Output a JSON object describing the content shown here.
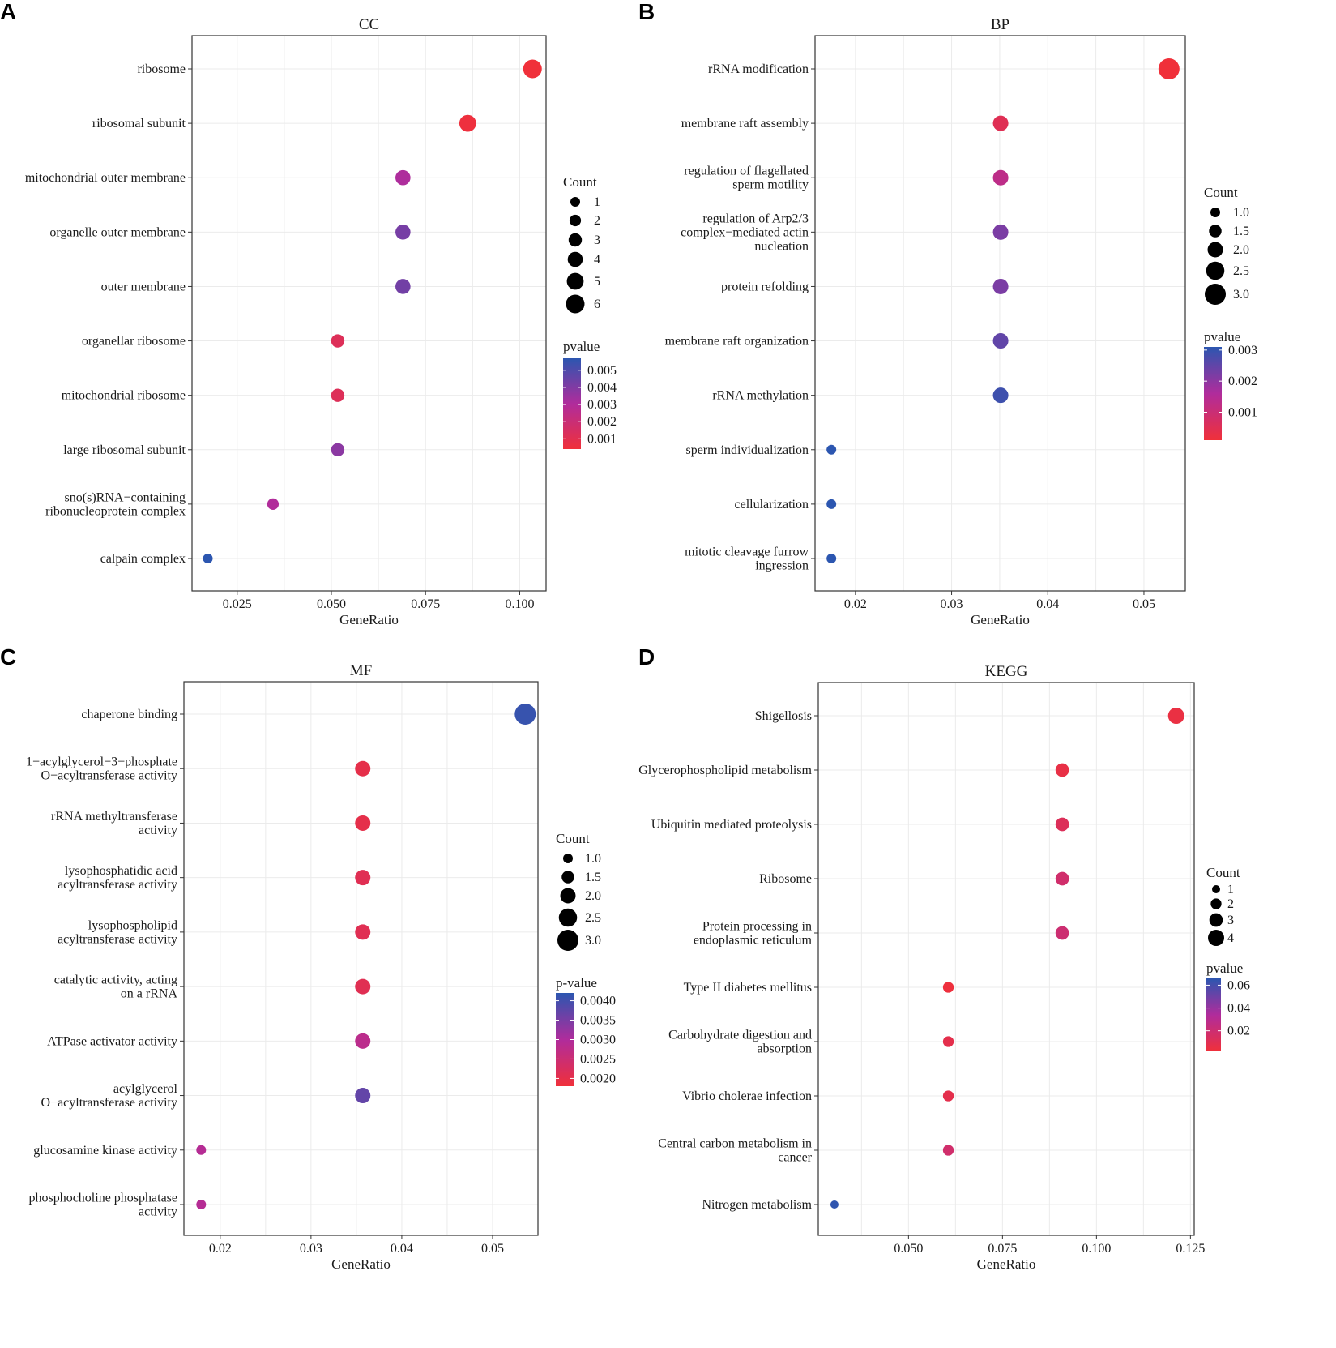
{
  "chart_data": [
    {
      "panel": "A",
      "type": "scatter",
      "title": "CC",
      "xlabel": "GeneRatio",
      "xlim": [
        0.013,
        0.107
      ],
      "xticks": [
        0.025,
        0.05,
        0.075,
        0.1
      ],
      "xtick_labels": [
        "0.025",
        "0.050",
        "0.075",
        "0.100"
      ],
      "categories": [
        {
          "label": [
            "ribosome"
          ],
          "x": 0.1034,
          "count": 6,
          "pvalue": 0.0004
        },
        {
          "label": [
            "ribosomal subunit"
          ],
          "x": 0.0862,
          "count": 5,
          "pvalue": 0.0005
        },
        {
          "label": [
            "mitochondrial outer membrane"
          ],
          "x": 0.069,
          "count": 4,
          "pvalue": 0.0031
        },
        {
          "label": [
            "organelle outer membrane"
          ],
          "x": 0.069,
          "count": 4,
          "pvalue": 0.0042
        },
        {
          "label": [
            "outer membrane"
          ],
          "x": 0.069,
          "count": 4,
          "pvalue": 0.0043
        },
        {
          "label": [
            "organellar ribosome"
          ],
          "x": 0.0517,
          "count": 3,
          "pvalue": 0.0012
        },
        {
          "label": [
            "mitochondrial ribosome"
          ],
          "x": 0.0517,
          "count": 3,
          "pvalue": 0.0012
        },
        {
          "label": [
            "large ribosomal subunit"
          ],
          "x": 0.0517,
          "count": 3,
          "pvalue": 0.0038
        },
        {
          "label": [
            "sno(s)RNA−containing",
            "ribonucleoprotein complex"
          ],
          "x": 0.0345,
          "count": 2,
          "pvalue": 0.003
        },
        {
          "label": [
            "calpain complex"
          ],
          "x": 0.0172,
          "count": 1,
          "pvalue": 0.0057
        }
      ],
      "size_legend": {
        "title": "Count",
        "labels": [
          "1",
          "2",
          "3",
          "4",
          "5",
          "6"
        ],
        "values": [
          1,
          2,
          3,
          4,
          5,
          6
        ]
      },
      "color_legend": {
        "title": "pvalue",
        "labels": [
          "0.005",
          "0.004",
          "0.003",
          "0.002",
          "0.001"
        ],
        "values": [
          0.005,
          0.004,
          0.003,
          0.002,
          0.001
        ],
        "range": [
          0.0004,
          0.0057
        ]
      }
    },
    {
      "panel": "B",
      "type": "scatter",
      "title": "BP",
      "xlabel": "GeneRatio",
      "xlim": [
        0.0158,
        0.0543
      ],
      "xticks": [
        0.02,
        0.03,
        0.04,
        0.05
      ],
      "xtick_labels": [
        "0.02",
        "0.03",
        "0.04",
        "0.05"
      ],
      "categories": [
        {
          "label": [
            "rRNA modification"
          ],
          "x": 0.0526,
          "count": 3,
          "pvalue": 0.0001
        },
        {
          "label": [
            "membrane raft assembly"
          ],
          "x": 0.0351,
          "count": 2,
          "pvalue": 0.0005
        },
        {
          "label": [
            "regulation of flagellated",
            "sperm motility"
          ],
          "x": 0.0351,
          "count": 2,
          "pvalue": 0.0013
        },
        {
          "label": [
            "regulation of Arp2/3",
            "complex−mediated actin",
            "nucleation"
          ],
          "x": 0.0351,
          "count": 2,
          "pvalue": 0.0022
        },
        {
          "label": [
            "protein refolding"
          ],
          "x": 0.0351,
          "count": 2,
          "pvalue": 0.0022
        },
        {
          "label": [
            "membrane raft organization"
          ],
          "x": 0.0351,
          "count": 2,
          "pvalue": 0.0025
        },
        {
          "label": [
            "rRNA methylation"
          ],
          "x": 0.0351,
          "count": 2,
          "pvalue": 0.0029
        },
        {
          "label": [
            "sperm individualization"
          ],
          "x": 0.0175,
          "count": 1,
          "pvalue": 0.0031
        },
        {
          "label": [
            "cellularization"
          ],
          "x": 0.0175,
          "count": 1,
          "pvalue": 0.0031
        },
        {
          "label": [
            "mitotic cleavage furrow",
            "ingression"
          ],
          "x": 0.0175,
          "count": 1,
          "pvalue": 0.0031
        }
      ],
      "size_legend": {
        "title": "Count",
        "labels": [
          "1.0",
          "1.5",
          "2.0",
          "2.5",
          "3.0"
        ],
        "values": [
          1,
          1.5,
          2,
          2.5,
          3
        ]
      },
      "color_legend": {
        "title": "pvalue",
        "labels": [
          "0.003",
          "0.002",
          "0.001"
        ],
        "values": [
          0.003,
          0.002,
          0.001
        ],
        "range": [
          0.0001,
          0.0031
        ]
      }
    },
    {
      "panel": "C",
      "type": "scatter",
      "title": "MF",
      "xlabel": "GeneRatio",
      "xlim": [
        0.016,
        0.055
      ],
      "xticks": [
        0.02,
        0.03,
        0.04,
        0.05
      ],
      "xtick_labels": [
        "0.02",
        "0.03",
        "0.04",
        "0.05"
      ],
      "categories": [
        {
          "label": [
            "chaperone binding"
          ],
          "x": 0.0536,
          "count": 3,
          "pvalue": 0.0041
        },
        {
          "label": [
            "1−acylglycerol−3−phosphate",
            "O−acyltransferase activity"
          ],
          "x": 0.0357,
          "count": 2,
          "pvalue": 0.002
        },
        {
          "label": [
            "rRNA methyltransferase",
            "activity"
          ],
          "x": 0.0357,
          "count": 2,
          "pvalue": 0.002
        },
        {
          "label": [
            "lysophosphatidic acid",
            "acyltransferase activity"
          ],
          "x": 0.0357,
          "count": 2,
          "pvalue": 0.0021
        },
        {
          "label": [
            "lysophospholipid",
            "acyltransferase activity"
          ],
          "x": 0.0357,
          "count": 2,
          "pvalue": 0.0021
        },
        {
          "label": [
            "catalytic activity, acting",
            "on a rRNA"
          ],
          "x": 0.0357,
          "count": 2,
          "pvalue": 0.0021
        },
        {
          "label": [
            "ATPase activator activity"
          ],
          "x": 0.0357,
          "count": 2,
          "pvalue": 0.0028
        },
        {
          "label": [
            "acylglycerol",
            "O−acyltransferase activity"
          ],
          "x": 0.0357,
          "count": 2,
          "pvalue": 0.0037
        },
        {
          "label": [
            "glucosamine kinase activity"
          ],
          "x": 0.0179,
          "count": 1,
          "pvalue": 0.0029
        },
        {
          "label": [
            "phosphocholine phosphatase",
            "activity"
          ],
          "x": 0.0179,
          "count": 1,
          "pvalue": 0.0029
        }
      ],
      "size_legend": {
        "title": "Count",
        "labels": [
          "1.0",
          "1.5",
          "2.0",
          "2.5",
          "3.0"
        ],
        "values": [
          1,
          1.5,
          2,
          2.5,
          3
        ]
      },
      "color_legend": {
        "title": "p-value",
        "labels": [
          "0.0040",
          "0.0035",
          "0.0030",
          "0.0025",
          "0.0020"
        ],
        "values": [
          0.004,
          0.0035,
          0.003,
          0.0025,
          0.002
        ],
        "range": [
          0.0018,
          0.0042
        ]
      }
    },
    {
      "panel": "D",
      "type": "scatter",
      "title": "KEGG",
      "xlabel": "GeneRatio",
      "xlim": [
        0.026,
        0.126
      ],
      "xticks": [
        0.05,
        0.075,
        0.1,
        0.125
      ],
      "xtick_labels": [
        "0.050",
        "0.075",
        "0.100",
        "0.125"
      ],
      "categories": [
        {
          "label": [
            "Shigellosis"
          ],
          "x": 0.1212,
          "count": 4,
          "pvalue": 0.005
        },
        {
          "label": [
            "Glycerophospholipid metabolism"
          ],
          "x": 0.0909,
          "count": 3,
          "pvalue": 0.006
        },
        {
          "label": [
            "Ubiquitin mediated proteolysis"
          ],
          "x": 0.0909,
          "count": 3,
          "pvalue": 0.012
        },
        {
          "label": [
            "Ribosome"
          ],
          "x": 0.0909,
          "count": 3,
          "pvalue": 0.018
        },
        {
          "label": [
            "Protein processing in",
            "endoplasmic reticulum"
          ],
          "x": 0.0909,
          "count": 3,
          "pvalue": 0.02
        },
        {
          "label": [
            "Type II diabetes mellitus"
          ],
          "x": 0.0606,
          "count": 2,
          "pvalue": 0.003
        },
        {
          "label": [
            "Carbohydrate digestion and",
            "absorption"
          ],
          "x": 0.0606,
          "count": 2,
          "pvalue": 0.008
        },
        {
          "label": [
            "Vibrio cholerae infection"
          ],
          "x": 0.0606,
          "count": 2,
          "pvalue": 0.008
        },
        {
          "label": [
            "Central carbon metabolism in",
            "cancer"
          ],
          "x": 0.0606,
          "count": 2,
          "pvalue": 0.018
        },
        {
          "label": [
            "Nitrogen metabolism"
          ],
          "x": 0.0303,
          "count": 1,
          "pvalue": 0.065
        }
      ],
      "size_legend": {
        "title": "Count",
        "labels": [
          "1",
          "2",
          "3",
          "4"
        ],
        "values": [
          1,
          2,
          3,
          4
        ]
      },
      "color_legend": {
        "title": "pvalue",
        "labels": [
          "0.06",
          "0.04",
          "0.02"
        ],
        "values": [
          0.06,
          0.04,
          0.02
        ],
        "range": [
          0.002,
          0.066
        ]
      }
    }
  ]
}
